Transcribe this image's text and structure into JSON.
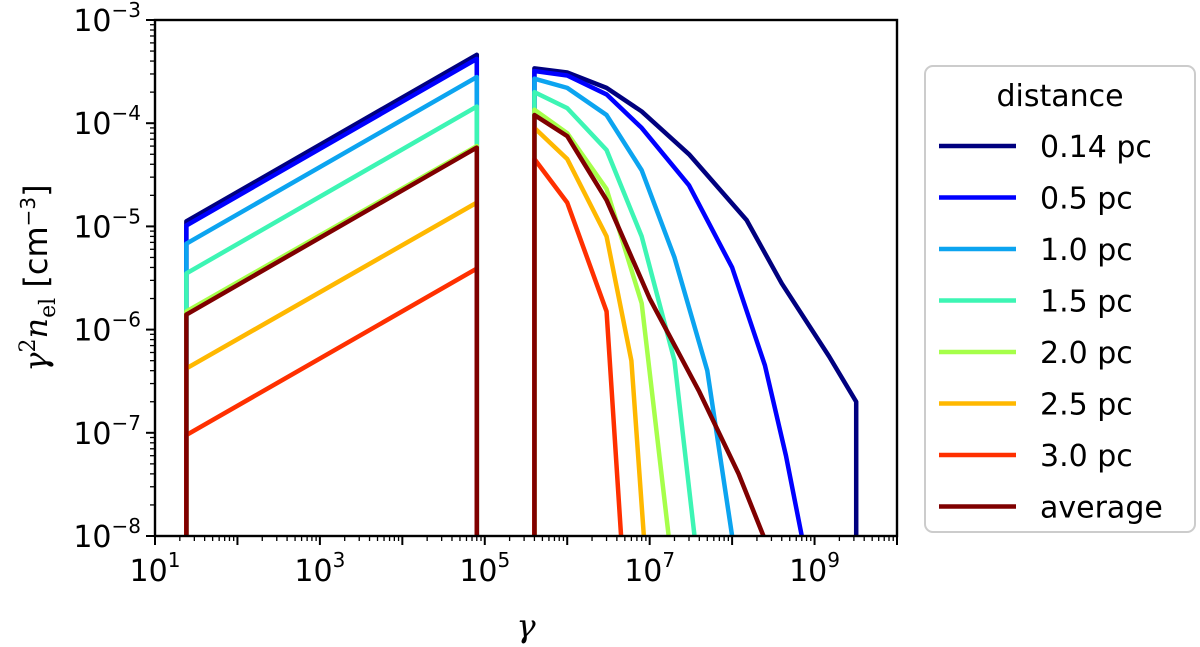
{
  "chart_data": {
    "type": "line",
    "xlabel": "γ",
    "ylabel_parts": {
      "gamma": "γ",
      "sq": "2",
      "n": "n",
      "sub": "el",
      "unit": " [cm",
      "unit_exp": "−3",
      "unit_close": "]"
    },
    "x_scale": "log",
    "y_scale": "log",
    "xlim": [
      10,
      10000000000
    ],
    "ylim": [
      1e-08,
      0.001
    ],
    "x_ticks": [
      {
        "value": 10,
        "base": "10",
        "exp": "1"
      },
      {
        "value": 1000,
        "base": "10",
        "exp": "3"
      },
      {
        "value": 100000,
        "base": "10",
        "exp": "5"
      },
      {
        "value": 10000000,
        "base": "10",
        "exp": "7"
      },
      {
        "value": 1000000000,
        "base": "10",
        "exp": "9"
      }
    ],
    "y_ticks": [
      {
        "value": 1e-08,
        "base": "10",
        "exp": "−8"
      },
      {
        "value": 1e-07,
        "base": "10",
        "exp": "−7"
      },
      {
        "value": 1e-06,
        "base": "10",
        "exp": "−6"
      },
      {
        "value": 1e-05,
        "base": "10",
        "exp": "−5"
      },
      {
        "value": 0.0001,
        "base": "10",
        "exp": "−4"
      },
      {
        "value": 0.001,
        "base": "10",
        "exp": "−3"
      }
    ],
    "grid": false,
    "legend": {
      "title": "distance",
      "placement": "outside-right"
    },
    "series": [
      {
        "name": "0.14 pc",
        "color": "#00007f",
        "segments": [
          [
            [
              24,
              1e-08
            ],
            [
              24,
              1.12e-05
            ],
            [
              80000,
              0.00046
            ],
            [
              80000,
              1e-08
            ]
          ],
          [
            [
              400000,
              1e-08
            ],
            [
              400000,
              0.00034
            ],
            [
              1000000,
              0.00031
            ],
            [
              3000000,
              0.00022
            ],
            [
              8000000,
              0.00013
            ],
            [
              30000000,
              5e-05
            ],
            [
              150000000,
              1.15e-05
            ],
            [
              400000000,
              2.8e-06
            ],
            [
              1500000000,
              5.5e-07
            ],
            [
              3200000000,
              2e-07
            ],
            [
              3200000000,
              1e-08
            ]
          ]
        ]
      },
      {
        "name": "0.5 pc",
        "color": "#0000ff",
        "segments": [
          [
            [
              24,
              1e-08
            ],
            [
              24,
              1.02e-05
            ],
            [
              80000,
              0.00042
            ],
            [
              80000,
              1e-08
            ]
          ],
          [
            [
              400000,
              1e-08
            ],
            [
              400000,
              0.00032
            ],
            [
              1000000,
              0.00029
            ],
            [
              3000000,
              0.00019
            ],
            [
              8000000,
              9e-05
            ],
            [
              30000000,
              2.5e-05
            ],
            [
              100000000,
              4e-06
            ],
            [
              250000000,
              4.5e-07
            ],
            [
              450000000,
              6e-08
            ],
            [
              700000000,
              1e-08
            ]
          ]
        ]
      },
      {
        "name": "1.0 pc",
        "color": "#0ca4f0",
        "segments": [
          [
            [
              24,
              1e-08
            ],
            [
              24,
              6.8e-06
            ],
            [
              80000,
              0.00028
            ],
            [
              80000,
              1e-08
            ]
          ],
          [
            [
              400000,
              1e-08
            ],
            [
              400000,
              0.00027
            ],
            [
              1000000,
              0.00022
            ],
            [
              3000000,
              0.00012
            ],
            [
              8000000,
              3.5e-05
            ],
            [
              20000000,
              5e-06
            ],
            [
              50000000,
              4e-07
            ],
            [
              100000000,
              1e-08
            ]
          ]
        ]
      },
      {
        "name": "1.5 pc",
        "color": "#3df5b4",
        "segments": [
          [
            [
              24,
              1e-08
            ],
            [
              24,
              3.5e-06
            ],
            [
              80000,
              0.000145
            ],
            [
              80000,
              1e-08
            ]
          ],
          [
            [
              400000,
              1e-08
            ],
            [
              400000,
              0.0002
            ],
            [
              1000000,
              0.00014
            ],
            [
              3000000,
              5.5e-05
            ],
            [
              8000000,
              8e-06
            ],
            [
              20000000,
              5e-07
            ],
            [
              35000000,
              1e-08
            ]
          ]
        ]
      },
      {
        "name": "2.0 pc",
        "color": "#a6ff4a",
        "segments": [
          [
            [
              24,
              1e-08
            ],
            [
              24,
              1.5e-06
            ],
            [
              80000,
              6e-05
            ],
            [
              80000,
              1e-08
            ]
          ],
          [
            [
              400000,
              1e-08
            ],
            [
              400000,
              0.000135
            ],
            [
              1000000,
              8e-05
            ],
            [
              3000000,
              2.3e-05
            ],
            [
              8000000,
              1.8e-06
            ],
            [
              17000000,
              1e-08
            ]
          ]
        ]
      },
      {
        "name": "2.5 pc",
        "color": "#ffb800",
        "segments": [
          [
            [
              24,
              1e-08
            ],
            [
              24,
              4.2e-07
            ],
            [
              80000,
              1.7e-05
            ],
            [
              80000,
              1e-08
            ]
          ],
          [
            [
              400000,
              1e-08
            ],
            [
              400000,
              9e-05
            ],
            [
              1000000,
              4.5e-05
            ],
            [
              3000000,
              8e-06
            ],
            [
              6000000,
              5e-07
            ],
            [
              8500000,
              1e-08
            ]
          ]
        ]
      },
      {
        "name": "3.0 pc",
        "color": "#ff3000",
        "segments": [
          [
            [
              24,
              1e-08
            ],
            [
              24,
              9.5e-08
            ],
            [
              80000,
              3.9e-06
            ],
            [
              80000,
              1e-08
            ]
          ],
          [
            [
              400000,
              1e-08
            ],
            [
              400000,
              4.5e-05
            ],
            [
              1000000,
              1.7e-05
            ],
            [
              3000000,
              1.5e-06
            ],
            [
              4500000,
              1e-08
            ]
          ]
        ]
      },
      {
        "name": "average",
        "color": "#7f0000",
        "segments": [
          [
            [
              24,
              1e-08
            ],
            [
              24,
              1.4e-06
            ],
            [
              80000,
              5.8e-05
            ],
            [
              80000,
              1e-08
            ]
          ],
          [
            [
              400000,
              1e-08
            ],
            [
              400000,
              0.00012
            ],
            [
              1000000,
              7.5e-05
            ],
            [
              3000000,
              1.8e-05
            ],
            [
              10000000,
              2e-06
            ],
            [
              40000000,
              2.5e-07
            ],
            [
              120000000,
              4e-08
            ],
            [
              240000000,
              1e-08
            ]
          ]
        ]
      }
    ]
  }
}
